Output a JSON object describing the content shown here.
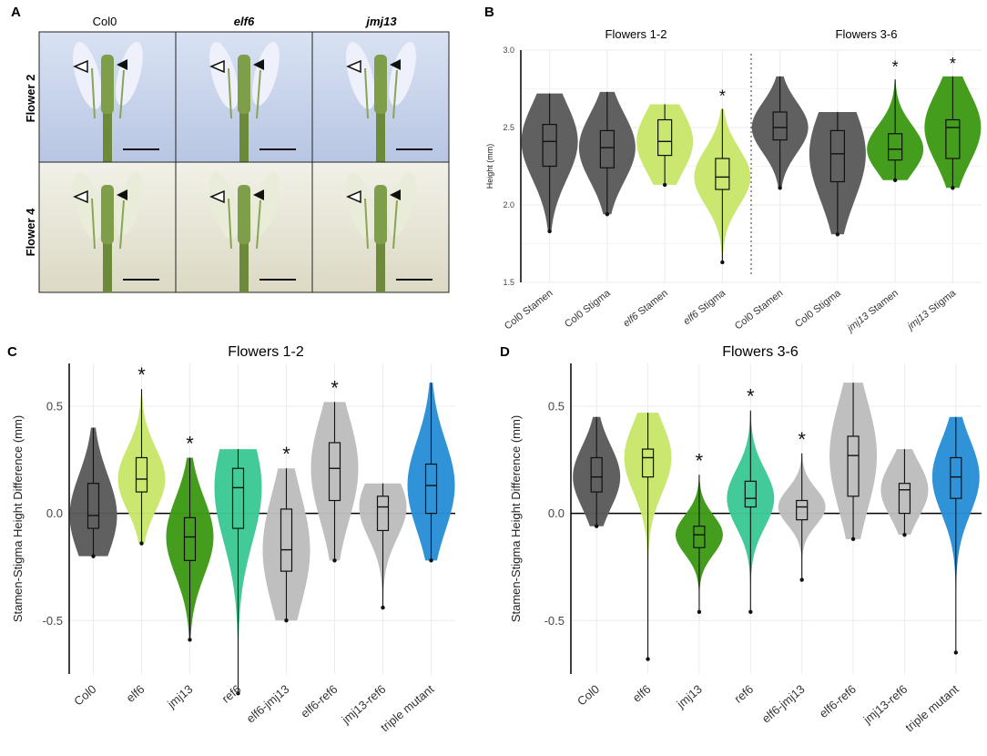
{
  "panel_a": {
    "letter": "A",
    "columns": [
      "Col0",
      "elf6",
      "jmj13"
    ],
    "rows": [
      "Flower 2",
      "Flower 4"
    ]
  },
  "colors": {
    "col0": "#5b5b5b",
    "elf6": "#c8e66a",
    "jmj13": "#3f9a16",
    "ref6": "#3cc995",
    "gray": "#bdbdbd",
    "triple": "#2a8fd6"
  },
  "chart_data": [
    {
      "id": "B",
      "type": "violin",
      "groups": [
        "Flowers 1-2",
        "Flowers 3-6"
      ],
      "ylabel": "Height (mm)",
      "ylim": [
        1.5,
        3.0
      ],
      "yticks": [
        "1.5",
        "2.0",
        "2.5",
        "3.0"
      ],
      "categories": [
        {
          "label": "Col0 Stamen",
          "color": "col0",
          "min": 1.83,
          "q1": 2.25,
          "median": 2.41,
          "q3": 2.52,
          "max": 2.72,
          "star": false
        },
        {
          "label": "Col0 Stigma",
          "color": "col0",
          "min": 1.94,
          "q1": 2.24,
          "median": 2.37,
          "q3": 2.48,
          "max": 2.73,
          "star": false
        },
        {
          "label": "elf6 Stamen",
          "color": "elf6",
          "min": 2.13,
          "q1": 2.32,
          "median": 2.41,
          "q3": 2.55,
          "max": 2.65,
          "star": false
        },
        {
          "label": "elf6 Stigma",
          "color": "elf6",
          "min": 1.63,
          "q1": 2.1,
          "median": 2.18,
          "q3": 2.3,
          "max": 2.62,
          "star": true
        },
        {
          "label": "Col0 Stamen",
          "color": "col0",
          "min": 2.11,
          "q1": 2.42,
          "median": 2.5,
          "q3": 2.6,
          "max": 2.83,
          "star": false
        },
        {
          "label": "Col0 Stigma",
          "color": "col0",
          "min": 1.81,
          "q1": 2.15,
          "median": 2.33,
          "q3": 2.48,
          "max": 2.6,
          "star": false
        },
        {
          "label": "jmj13 Stamen",
          "color": "jmj13",
          "min": 2.16,
          "q1": 2.29,
          "median": 2.36,
          "q3": 2.46,
          "max": 2.81,
          "star": true
        },
        {
          "label": "jmj13 Stigma",
          "color": "jmj13",
          "min": 2.11,
          "q1": 2.3,
          "median": 2.5,
          "q3": 2.55,
          "max": 2.83,
          "star": true
        }
      ]
    },
    {
      "id": "C",
      "type": "violin",
      "title": "Flowers 1-2",
      "ylabel": "Stamen-Stigma Height Difference (mm)",
      "ylim": [
        -0.75,
        0.7
      ],
      "yticks": [
        "-0.5",
        "0.0",
        "0.5"
      ],
      "categories": [
        {
          "label": "Col0",
          "color": "col0",
          "min": -0.2,
          "q1": -0.07,
          "median": -0.01,
          "q3": 0.14,
          "max": 0.4,
          "star": false
        },
        {
          "label": "elf6",
          "color": "elf6",
          "min": -0.14,
          "q1": 0.1,
          "median": 0.16,
          "q3": 0.26,
          "max": 0.58,
          "star": true
        },
        {
          "label": "jmj13",
          "color": "jmj13",
          "min": -0.59,
          "q1": -0.22,
          "median": -0.11,
          "q3": -0.02,
          "max": 0.26,
          "star": true
        },
        {
          "label": "ref6",
          "color": "ref6",
          "min": -0.84,
          "q1": -0.07,
          "median": 0.12,
          "q3": 0.21,
          "max": 0.3,
          "star": false
        },
        {
          "label": "elf6-jmj13",
          "color": "gray",
          "min": -0.5,
          "q1": -0.27,
          "median": -0.17,
          "q3": 0.02,
          "max": 0.21,
          "star": true
        },
        {
          "label": "elf6-ref6",
          "color": "gray",
          "min": -0.22,
          "q1": 0.06,
          "median": 0.21,
          "q3": 0.33,
          "max": 0.52,
          "star": true
        },
        {
          "label": "jmj13-ref6",
          "color": "gray",
          "min": -0.44,
          "q1": -0.08,
          "median": 0.03,
          "q3": 0.08,
          "max": 0.14,
          "star": false
        },
        {
          "label": "triple mutant",
          "color": "triple",
          "min": -0.22,
          "q1": 0.0,
          "median": 0.13,
          "q3": 0.23,
          "max": 0.61,
          "star": false
        }
      ]
    },
    {
      "id": "D",
      "type": "violin",
      "title": "Flowers 3-6",
      "ylabel": "Stamen-Stigma Height Difference (mm)",
      "ylim": [
        -0.75,
        0.7
      ],
      "yticks": [
        "-0.5",
        "0.0",
        "0.5"
      ],
      "categories": [
        {
          "label": "Col0",
          "color": "col0",
          "min": -0.06,
          "q1": 0.1,
          "median": 0.17,
          "q3": 0.26,
          "max": 0.45,
          "star": false
        },
        {
          "label": "elf6",
          "color": "elf6",
          "min": -0.68,
          "q1": 0.17,
          "median": 0.26,
          "q3": 0.3,
          "max": 0.47,
          "star": false
        },
        {
          "label": "jmj13",
          "color": "jmj13",
          "min": -0.46,
          "q1": -0.16,
          "median": -0.1,
          "q3": -0.06,
          "max": 0.18,
          "star": true
        },
        {
          "label": "ref6",
          "color": "ref6",
          "min": -0.46,
          "q1": 0.03,
          "median": 0.07,
          "q3": 0.15,
          "max": 0.48,
          "star": true
        },
        {
          "label": "elf6-jmj13",
          "color": "gray",
          "min": -0.31,
          "q1": -0.03,
          "median": 0.03,
          "q3": 0.06,
          "max": 0.28,
          "star": true
        },
        {
          "label": "elf6-ref6",
          "color": "gray",
          "min": -0.12,
          "q1": 0.08,
          "median": 0.27,
          "q3": 0.36,
          "max": 0.61,
          "star": false
        },
        {
          "label": "jmj13-ref6",
          "color": "gray",
          "min": -0.1,
          "q1": 0.0,
          "median": 0.11,
          "q3": 0.14,
          "max": 0.3,
          "star": false
        },
        {
          "label": "triple mutant",
          "color": "triple",
          "min": -0.65,
          "q1": 0.07,
          "median": 0.17,
          "q3": 0.26,
          "max": 0.45,
          "star": false
        }
      ]
    }
  ],
  "significance_marker": "*"
}
